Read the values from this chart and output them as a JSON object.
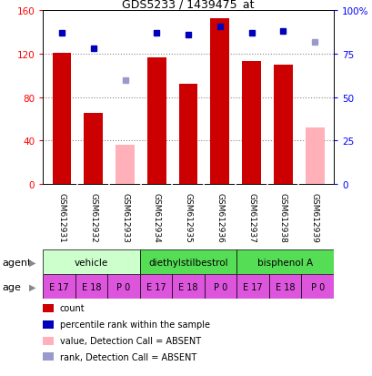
{
  "title": "GDS5233 / 1439475_at",
  "samples": [
    "GSM612931",
    "GSM612932",
    "GSM612933",
    "GSM612934",
    "GSM612935",
    "GSM612936",
    "GSM612937",
    "GSM612938",
    "GSM612939"
  ],
  "count_values": [
    121,
    65,
    null,
    117,
    92,
    153,
    113,
    110,
    null
  ],
  "count_absent": [
    null,
    null,
    36,
    null,
    null,
    null,
    null,
    null,
    52
  ],
  "rank_values": [
    87,
    78,
    null,
    87,
    86,
    91,
    87,
    88,
    null
  ],
  "rank_absent": [
    null,
    null,
    60,
    null,
    null,
    null,
    null,
    null,
    82
  ],
  "ylim_left": [
    0,
    160
  ],
  "ylim_right": [
    0,
    100
  ],
  "yticks_left": [
    0,
    40,
    80,
    120,
    160
  ],
  "ytick_labels_left": [
    "0",
    "40",
    "80",
    "120",
    "160"
  ],
  "yticks_right": [
    0,
    25,
    50,
    75,
    100
  ],
  "ytick_labels_right": [
    "0",
    "25",
    "50",
    "75",
    "100%"
  ],
  "count_color": "#cc0000",
  "count_absent_color": "#ffb0b8",
  "rank_color": "#0000bb",
  "rank_absent_color": "#9999cc",
  "agent_groups": [
    {
      "label": "vehicle",
      "start": 0,
      "end": 3,
      "color": "#ccffcc"
    },
    {
      "label": "diethylstilbestrol",
      "start": 3,
      "end": 6,
      "color": "#55dd55"
    },
    {
      "label": "bisphenol A",
      "start": 6,
      "end": 9,
      "color": "#55dd55"
    }
  ],
  "age_labels": [
    "E 17",
    "E 18",
    "P 0",
    "E 17",
    "E 18",
    "P 0",
    "E 17",
    "E 18",
    "P 0"
  ],
  "age_color": "#dd55dd",
  "agent_label": "agent",
  "age_label_text": "age",
  "legend_items": [
    {
      "label": "count",
      "color": "#cc0000"
    },
    {
      "label": "percentile rank within the sample",
      "color": "#0000bb"
    },
    {
      "label": "value, Detection Call = ABSENT",
      "color": "#ffb0b8"
    },
    {
      "label": "rank, Detection Call = ABSENT",
      "color": "#9999cc"
    }
  ],
  "grid_color": "#888888",
  "bg_color": "#ffffff",
  "label_area_bg": "#cccccc",
  "bar_width": 0.6
}
